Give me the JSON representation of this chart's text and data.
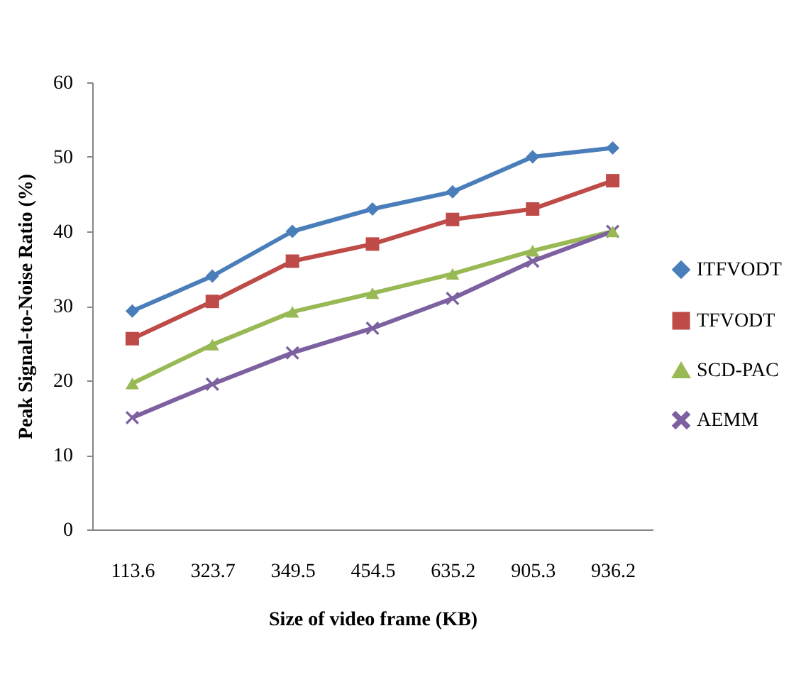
{
  "chart_data": {
    "type": "line",
    "xlabel": "Size of video frame (KB)",
    "ylabel": "Peak Signal-to-Noise Ratio (%)",
    "categories": [
      "113.6",
      "323.7",
      "349.5",
      "454.5",
      "635.2",
      "905.3",
      "936.2"
    ],
    "series": [
      {
        "name": "ITFVODT",
        "color": "#4a7ebb",
        "marker": "diamond",
        "values": [
          29.3,
          34,
          40,
          43,
          45.3,
          50,
          51.2
        ]
      },
      {
        "name": "TFVODT",
        "color": "#be4b48",
        "marker": "square",
        "values": [
          25.6,
          30.6,
          36,
          38.3,
          41.6,
          43,
          46.8
        ]
      },
      {
        "name": "SCD-PAC",
        "color": "#98b954",
        "marker": "triangle",
        "values": [
          19.6,
          24.8,
          29.2,
          31.7,
          34.3,
          37.4,
          40
        ]
      },
      {
        "name": "AEMM",
        "color": "#7d60a0",
        "marker": "cross",
        "values": [
          15,
          19.5,
          23.7,
          27,
          31,
          36,
          40
        ]
      }
    ],
    "ylim": [
      0,
      60
    ],
    "yticks": [
      0,
      10,
      20,
      30,
      40,
      50,
      60
    ],
    "grid": false,
    "legend": "right",
    "line_style": "solid"
  }
}
